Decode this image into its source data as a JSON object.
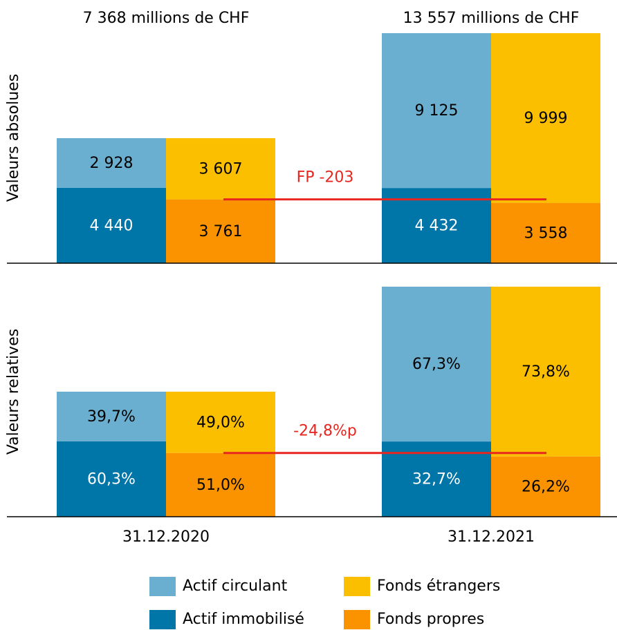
{
  "chart_data": {
    "type": "bar",
    "stacked": true,
    "categories": [
      "31.12.2020",
      "31.12.2021"
    ],
    "totals": [
      "7 368 millions de CHF",
      "13 557 millions de CHF"
    ],
    "series": [
      {
        "name": "Actif circulant",
        "color": "#6aafd0",
        "stack": "actif"
      },
      {
        "name": "Fonds étrangers",
        "color": "#fbbf00",
        "stack": "passif"
      },
      {
        "name": "Actif immobilisé",
        "color": "#0076a8",
        "stack": "actif"
      },
      {
        "name": "Fonds propres",
        "color": "#fb9300",
        "stack": "passif"
      }
    ],
    "panels": [
      {
        "ylabel": "Valeurs absolues",
        "ylim": [
          0,
          13557
        ],
        "annotation": "FP -203",
        "values": [
          [
            2928,
            9125
          ],
          [
            3607,
            9999
          ],
          [
            4440,
            4432
          ],
          [
            3761,
            3558
          ]
        ],
        "value_labels": [
          [
            "2 928",
            "9 125"
          ],
          [
            "3 607",
            "9 999"
          ],
          [
            "4 440",
            "4 432"
          ],
          [
            "3 761",
            "3 558"
          ]
        ]
      },
      {
        "ylabel": "Valeurs relatives",
        "ylim": [
          0,
          100
        ],
        "annotation": "-24,8%p",
        "values": [
          [
            39.7,
            67.3
          ],
          [
            49.0,
            73.8
          ],
          [
            60.3,
            32.7
          ],
          [
            51.0,
            26.2
          ]
        ],
        "value_labels": [
          [
            "39,7%",
            "67,3%"
          ],
          [
            "49,0%",
            "73,8%"
          ],
          [
            "60,3%",
            "32,7%"
          ],
          [
            "51,0%",
            "26,2%"
          ]
        ]
      }
    ]
  }
}
